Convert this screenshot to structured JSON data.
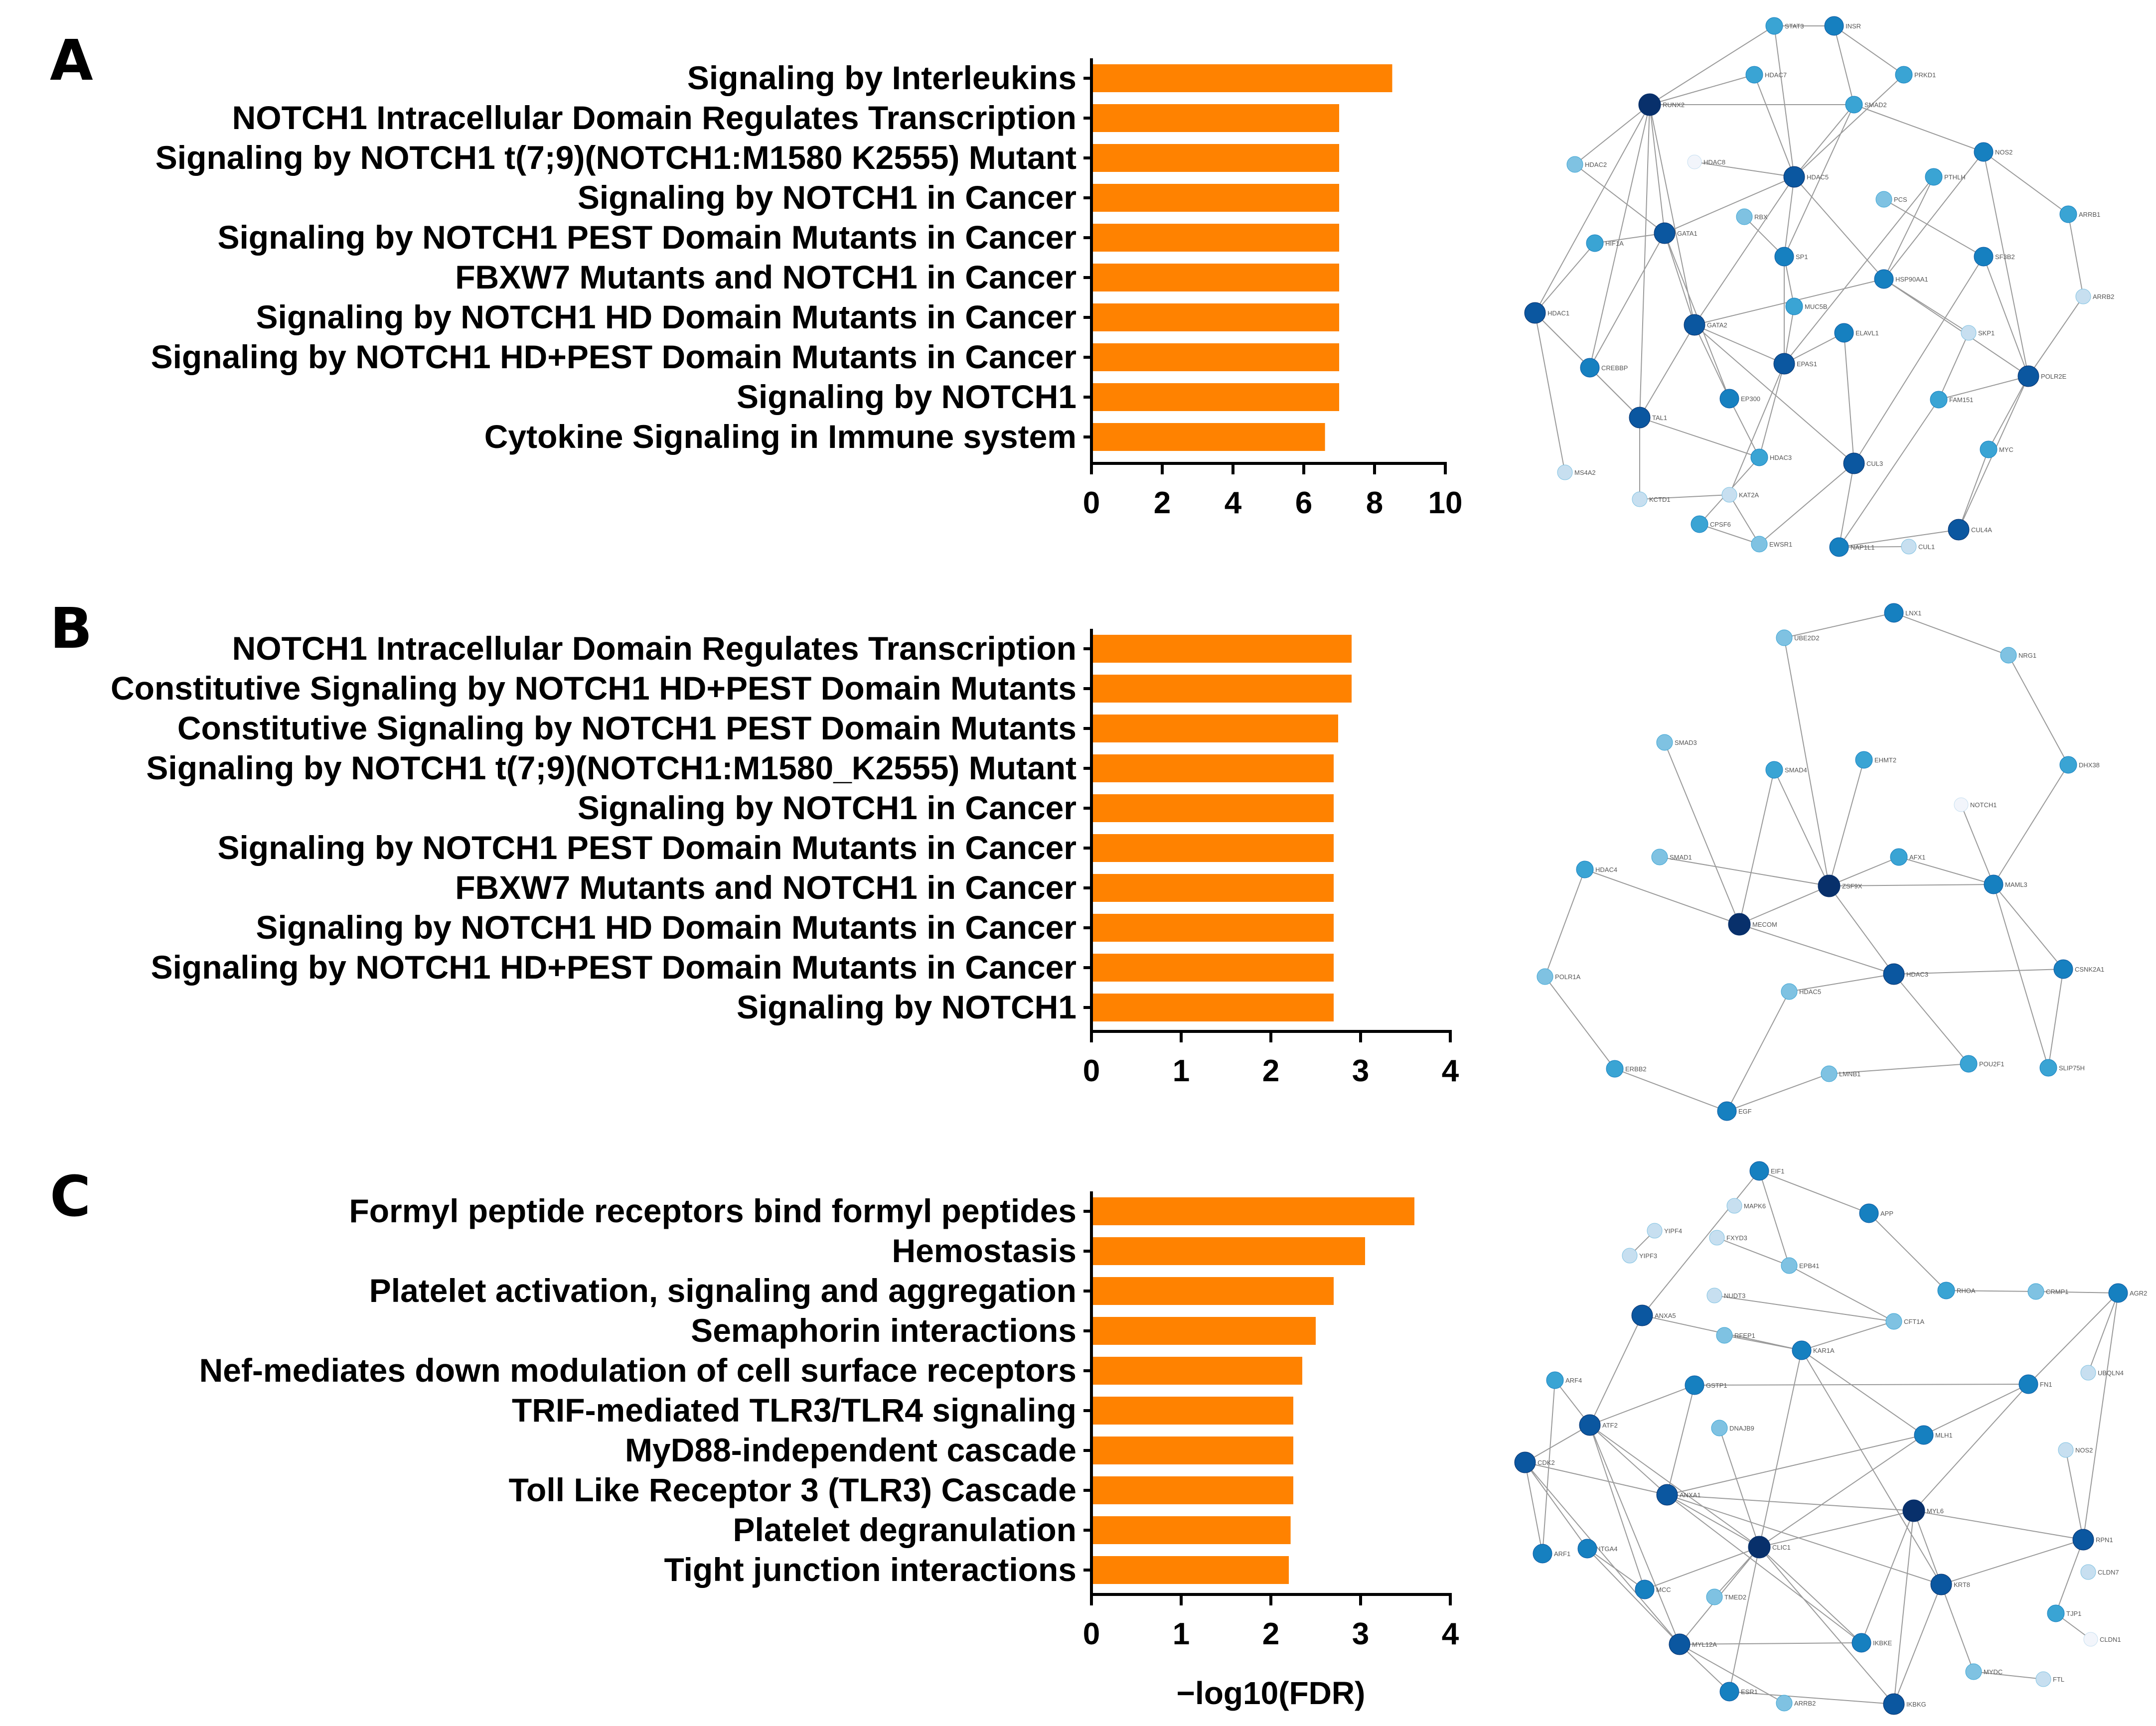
{
  "colors": {
    "bar": "#ff8200",
    "axis": "#000000",
    "edge": "#9a9a9a",
    "node_scale": [
      "#f2f5fb",
      "#c7dff0",
      "#7fc2e2",
      "#3aa4d4",
      "#1680c0",
      "#0b57a0",
      "#08306b"
    ]
  },
  "chart_data": [
    {
      "type": "bar",
      "orientation": "horizontal",
      "panel": "A",
      "xlabel": "",
      "xlim": [
        0,
        10
      ],
      "xticks": [
        "0",
        "2",
        "4",
        "6",
        "8",
        "10"
      ],
      "categories": [
        "Signaling by Interleukins",
        "NOTCH1 Intracellular Domain Regulates Transcription",
        "Signaling by NOTCH1 t(7;9)(NOTCH1:M1580 K2555) Mutant",
        "Signaling by NOTCH1 in Cancer",
        "Signaling by NOTCH1 PEST Domain Mutants in Cancer",
        "FBXW7 Mutants and NOTCH1 in Cancer",
        "Signaling by NOTCH1 HD Domain Mutants in Cancer",
        "Signaling by NOTCH1 HD+PEST Domain Mutants in Cancer",
        "Signaling by NOTCH1",
        "Cytokine Signaling in Immune system"
      ],
      "values": [
        8.5,
        7.0,
        7.0,
        7.0,
        7.0,
        7.0,
        7.0,
        7.0,
        7.0,
        6.6
      ]
    },
    {
      "type": "bar",
      "orientation": "horizontal",
      "panel": "B",
      "xlabel": "",
      "xlim": [
        0,
        4
      ],
      "xticks": [
        "0",
        "1",
        "2",
        "3",
        "4"
      ],
      "categories": [
        "NOTCH1 Intracellular Domain Regulates Transcription",
        "Constitutive Signaling by NOTCH1 HD+PEST Domain Mutants",
        "Constitutive Signaling by NOTCH1 PEST Domain Mutants",
        "Signaling by NOTCH1 t(7;9)(NOTCH1:M1580_K2555) Mutant",
        "Signaling by NOTCH1 in Cancer",
        "Signaling by NOTCH1 PEST Domain Mutants in Cancer",
        "FBXW7 Mutants and NOTCH1 in Cancer",
        "Signaling by NOTCH1 HD Domain Mutants in Cancer",
        "Signaling by NOTCH1 HD+PEST Domain Mutants in Cancer",
        "Signaling by NOTCH1"
      ],
      "values": [
        2.9,
        2.9,
        2.75,
        2.7,
        2.7,
        2.7,
        2.7,
        2.7,
        2.7,
        2.7
      ]
    },
    {
      "type": "bar",
      "orientation": "horizontal",
      "panel": "C",
      "xlabel": "−log10(FDR)",
      "xlim": [
        0,
        4
      ],
      "xticks": [
        "0",
        "1",
        "2",
        "3",
        "4"
      ],
      "categories": [
        "Formyl peptide receptors bind formyl peptides",
        "Hemostasis",
        "Platelet activation, signaling and aggregation",
        "Semaphorin interactions",
        "Nef-mediates down modulation of cell surface receptors",
        "TRIF-mediated TLR3/TLR4 signaling",
        "MyD88-independent cascade",
        "Toll Like Receptor 3 (TLR3) Cascade",
        "Platelet degranulation",
        "Tight junction interactions"
      ],
      "values": [
        3.6,
        3.05,
        2.7,
        2.5,
        2.35,
        2.25,
        2.25,
        2.25,
        2.22,
        2.2
      ]
    }
  ],
  "networks": [
    {
      "panel": "A",
      "nodes": [
        {
          "id": "STAT3",
          "c": 3
        },
        {
          "id": "INSR",
          "c": 4
        },
        {
          "id": "HDAC7",
          "c": 3
        },
        {
          "id": "PRKD1",
          "c": 3
        },
        {
          "id": "RUNX2",
          "c": 6
        },
        {
          "id": "SMAD2",
          "c": 3
        },
        {
          "id": "HDAC8",
          "c": 0
        },
        {
          "id": "NOS2",
          "c": 4
        },
        {
          "id": "HDAC2",
          "c": 2
        },
        {
          "id": "HDAC5",
          "c": 5
        },
        {
          "id": "PTHLH",
          "c": 3
        },
        {
          "id": "ARRB1",
          "c": 3
        },
        {
          "id": "GATA1",
          "c": 5
        },
        {
          "id": "RBX",
          "c": 2
        },
        {
          "id": "PCS",
          "c": 2
        },
        {
          "id": "HIF1A",
          "c": 3
        },
        {
          "id": "SP1",
          "c": 4
        },
        {
          "id": "HSP90AA1",
          "c": 4
        },
        {
          "id": "SF3B2",
          "c": 4
        },
        {
          "id": "ARRB2",
          "c": 1
        },
        {
          "id": "HDAC1",
          "c": 5
        },
        {
          "id": "MUC5B",
          "c": 3
        },
        {
          "id": "GATA2",
          "c": 5
        },
        {
          "id": "ELAVL1",
          "c": 4
        },
        {
          "id": "SKP1",
          "c": 1
        },
        {
          "id": "CREBBP",
          "c": 4
        },
        {
          "id": "EPAS1",
          "c": 5
        },
        {
          "id": "POLR2E",
          "c": 5
        },
        {
          "id": "TAL1",
          "c": 5
        },
        {
          "id": "EP300",
          "c": 4
        },
        {
          "id": "FAM151",
          "c": 3
        },
        {
          "id": "HDAC3",
          "c": 3
        },
        {
          "id": "CUL3",
          "c": 5
        },
        {
          "id": "MYC",
          "c": 3
        },
        {
          "id": "MS4A2",
          "c": 1
        },
        {
          "id": "KCTD1",
          "c": 1
        },
        {
          "id": "KAT2A",
          "c": 1
        },
        {
          "id": "CPSF6",
          "c": 3
        },
        {
          "id": "EWSR1",
          "c": 2
        },
        {
          "id": "NAP1L1",
          "c": 4
        },
        {
          "id": "CUL1",
          "c": 1
        },
        {
          "id": "CUL4A",
          "c": 5
        }
      ]
    },
    {
      "panel": "B",
      "nodes": [
        {
          "id": "LNX1",
          "c": 4
        },
        {
          "id": "UBE2D2",
          "c": 2
        },
        {
          "id": "NRG1",
          "c": 2
        },
        {
          "id": "SMAD3",
          "c": 2
        },
        {
          "id": "EHMT2",
          "c": 3
        },
        {
          "id": "SMAD4",
          "c": 3
        },
        {
          "id": "DHX38",
          "c": 3
        },
        {
          "id": "NOTCH1",
          "c": 0
        },
        {
          "id": "HDAC4",
          "c": 3
        },
        {
          "id": "SMAD1",
          "c": 2
        },
        {
          "id": "ZSF9X",
          "c": 6
        },
        {
          "id": "AFX1",
          "c": 3
        },
        {
          "id": "MAML3",
          "c": 4
        },
        {
          "id": "MECOM",
          "c": 6
        },
        {
          "id": "POLR1A",
          "c": 2
        },
        {
          "id": "HDAC5",
          "c": 2
        },
        {
          "id": "HDAC3",
          "c": 5
        },
        {
          "id": "CSNK2A1",
          "c": 4
        },
        {
          "id": "ERBB2",
          "c": 3
        },
        {
          "id": "LMNB1",
          "c": 2
        },
        {
          "id": "POU2F1",
          "c": 3
        },
        {
          "id": "SLIP75H",
          "c": 3
        },
        {
          "id": "EGF",
          "c": 4
        }
      ]
    },
    {
      "panel": "C",
      "nodes": [
        {
          "id": "EIF1",
          "c": 4
        },
        {
          "id": "MAPK6",
          "c": 1
        },
        {
          "id": "APP",
          "c": 4
        },
        {
          "id": "YIPF4",
          "c": 1
        },
        {
          "id": "FXYD3",
          "c": 1
        },
        {
          "id": "YIPF3",
          "c": 1
        },
        {
          "id": "EPB41",
          "c": 2
        },
        {
          "id": "RHOA",
          "c": 3
        },
        {
          "id": "CRMP1",
          "c": 2
        },
        {
          "id": "AGR2",
          "c": 4
        },
        {
          "id": "NUDT3",
          "c": 1
        },
        {
          "id": "ANXA5",
          "c": 5
        },
        {
          "id": "CFT1A",
          "c": 2
        },
        {
          "id": "RFEP1",
          "c": 2
        },
        {
          "id": "KAR1A",
          "c": 4
        },
        {
          "id": "UBQLN4",
          "c": 1
        },
        {
          "id": "ARF4",
          "c": 3
        },
        {
          "id": "GSTP1",
          "c": 4
        },
        {
          "id": "FN1",
          "c": 4
        },
        {
          "id": "ATF2",
          "c": 5
        },
        {
          "id": "DNAJB9",
          "c": 2
        },
        {
          "id": "MLH1",
          "c": 4
        },
        {
          "id": "NOS2",
          "c": 1
        },
        {
          "id": "CDK2",
          "c": 5
        },
        {
          "id": "ANXA1",
          "c": 5
        },
        {
          "id": "MYL6",
          "c": 6
        },
        {
          "id": "RPN1",
          "c": 5
        },
        {
          "id": "ARF1",
          "c": 4
        },
        {
          "id": "ITGA4",
          "c": 4
        },
        {
          "id": "CLIC1",
          "c": 6
        },
        {
          "id": "CLDN7",
          "c": 1
        },
        {
          "id": "KRT8",
          "c": 5
        },
        {
          "id": "MCC",
          "c": 4
        },
        {
          "id": "TMED2",
          "c": 2
        },
        {
          "id": "TJP1",
          "c": 3
        },
        {
          "id": "IKBKE",
          "c": 4
        },
        {
          "id": "CLDN1",
          "c": 0
        },
        {
          "id": "MYL12A",
          "c": 5
        },
        {
          "id": "MYDC",
          "c": 2
        },
        {
          "id": "FTL",
          "c": 1
        },
        {
          "id": "ESR1",
          "c": 4
        },
        {
          "id": "ARRB2",
          "c": 2
        },
        {
          "id": "IKBKG",
          "c": 5
        }
      ]
    }
  ]
}
